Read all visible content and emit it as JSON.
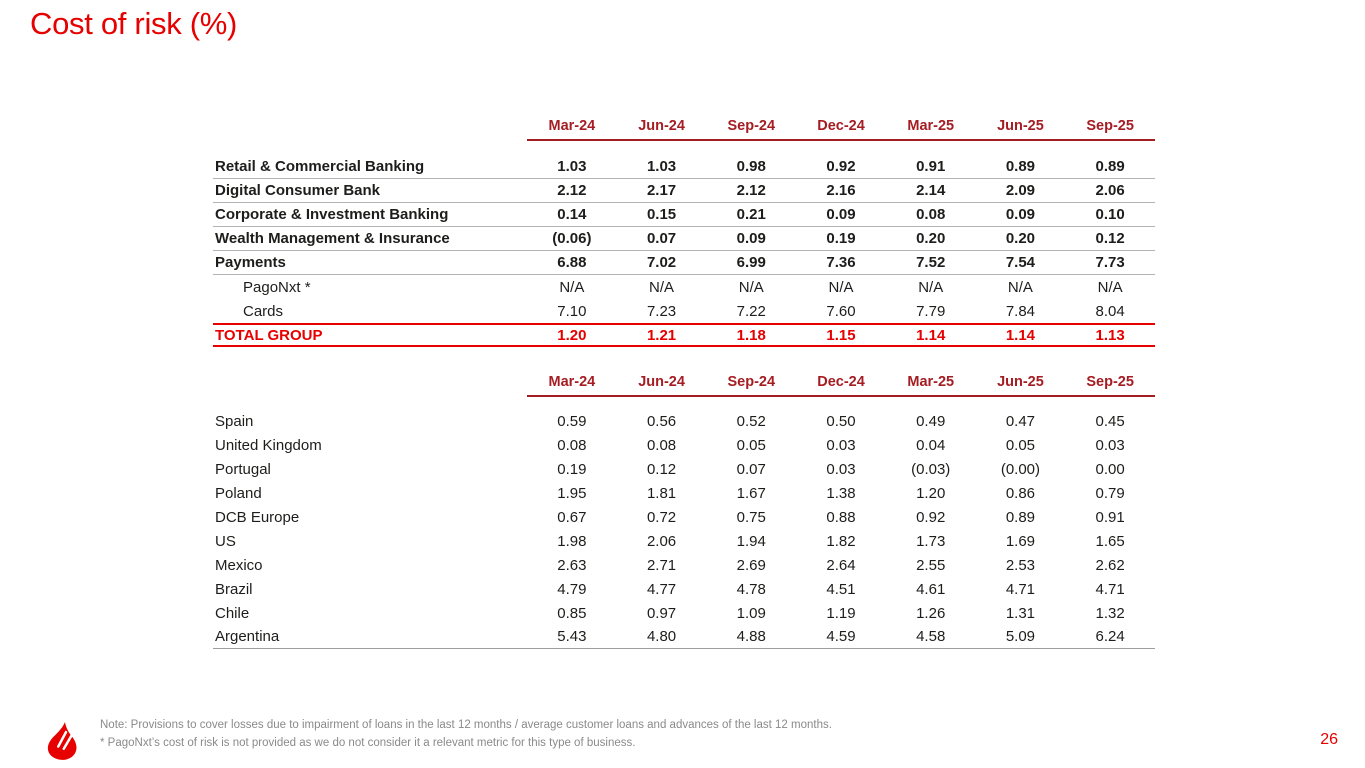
{
  "slide": {
    "title": "Cost of risk (%)",
    "page_number": "26"
  },
  "colors": {
    "brand_red": "#e60000",
    "header_dark_red": "#a51d23",
    "total_row_red": "#e60000",
    "row_separator_gray": "#b3b3b3",
    "footnote_gray": "#8a8a8a",
    "text_black": "#1d1d1b"
  },
  "columns": [
    "Mar-24",
    "Jun-24",
    "Sep-24",
    "Dec-24",
    "Mar-25",
    "Jun-25",
    "Sep-25"
  ],
  "segments_table": {
    "rows": [
      {
        "label": "Retail & Commercial Banking",
        "style": "bold",
        "separator": true,
        "values": [
          "1.03",
          "1.03",
          "0.98",
          "0.92",
          "0.91",
          "0.89",
          "0.89"
        ]
      },
      {
        "label": "Digital Consumer Bank",
        "style": "bold",
        "separator": true,
        "values": [
          "2.12",
          "2.17",
          "2.12",
          "2.16",
          "2.14",
          "2.09",
          "2.06"
        ]
      },
      {
        "label": "Corporate & Investment Banking",
        "style": "bold",
        "separator": true,
        "values": [
          "0.14",
          "0.15",
          "0.21",
          "0.09",
          "0.08",
          "0.09",
          "0.10"
        ]
      },
      {
        "label": "Wealth Management & Insurance",
        "style": "bold",
        "separator": true,
        "values": [
          "(0.06)",
          "0.07",
          "0.09",
          "0.19",
          "0.20",
          "0.20",
          "0.12"
        ]
      },
      {
        "label": "Payments",
        "style": "bold",
        "separator": true,
        "values": [
          "6.88",
          "7.02",
          "6.99",
          "7.36",
          "7.52",
          "7.54",
          "7.73"
        ]
      },
      {
        "label": "PagoNxt *",
        "style": "indent",
        "separator": false,
        "values": [
          "N/A",
          "N/A",
          "N/A",
          "N/A",
          "N/A",
          "N/A",
          "N/A"
        ]
      },
      {
        "label": "Cards",
        "style": "indent",
        "separator": false,
        "values": [
          "7.10",
          "7.23",
          "7.22",
          "7.60",
          "7.79",
          "7.84",
          "8.04"
        ]
      },
      {
        "label": "TOTAL GROUP",
        "style": "total",
        "separator": false,
        "values": [
          "1.20",
          "1.21",
          "1.18",
          "1.15",
          "1.14",
          "1.14",
          "1.13"
        ]
      }
    ]
  },
  "geographies_table": {
    "rows": [
      {
        "label": "Spain",
        "style": "plain",
        "separator": false,
        "values": [
          "0.59",
          "0.56",
          "0.52",
          "0.50",
          "0.49",
          "0.47",
          "0.45"
        ]
      },
      {
        "label": "United Kingdom",
        "style": "plain",
        "separator": false,
        "values": [
          "0.08",
          "0.08",
          "0.05",
          "0.03",
          "0.04",
          "0.05",
          "0.03"
        ]
      },
      {
        "label": "Portugal",
        "style": "plain",
        "separator": false,
        "values": [
          "0.19",
          "0.12",
          "0.07",
          "0.03",
          "(0.03)",
          "(0.00)",
          "0.00"
        ]
      },
      {
        "label": "Poland",
        "style": "plain",
        "separator": false,
        "values": [
          "1.95",
          "1.81",
          "1.67",
          "1.38",
          "1.20",
          "0.86",
          "0.79"
        ]
      },
      {
        "label": "DCB Europe",
        "style": "plain",
        "separator": false,
        "values": [
          "0.67",
          "0.72",
          "0.75",
          "0.88",
          "0.92",
          "0.89",
          "0.91"
        ]
      },
      {
        "label": "US",
        "style": "plain",
        "separator": false,
        "values": [
          "1.98",
          "2.06",
          "1.94",
          "1.82",
          "1.73",
          "1.69",
          "1.65"
        ]
      },
      {
        "label": "Mexico",
        "style": "plain",
        "separator": false,
        "values": [
          "2.63",
          "2.71",
          "2.69",
          "2.64",
          "2.55",
          "2.53",
          "2.62"
        ]
      },
      {
        "label": "Brazil",
        "style": "plain",
        "separator": false,
        "values": [
          "4.79",
          "4.77",
          "4.78",
          "4.51",
          "4.61",
          "4.71",
          "4.71"
        ]
      },
      {
        "label": "Chile",
        "style": "plain",
        "separator": false,
        "values": [
          "0.85",
          "0.97",
          "1.09",
          "1.19",
          "1.26",
          "1.31",
          "1.32"
        ]
      },
      {
        "label": "Argentina",
        "style": "plain",
        "separator": false,
        "values": [
          "5.43",
          "4.80",
          "4.88",
          "4.59",
          "4.58",
          "5.09",
          "6.24"
        ]
      }
    ]
  },
  "footnotes": [
    "Note: Provisions to cover losses due to impairment of loans in the last 12 months / average customer loans and advances of the last 12 months.",
    "* PagoNxt’s cost of risk is not provided as we do not consider it a relevant metric for this type of business."
  ]
}
